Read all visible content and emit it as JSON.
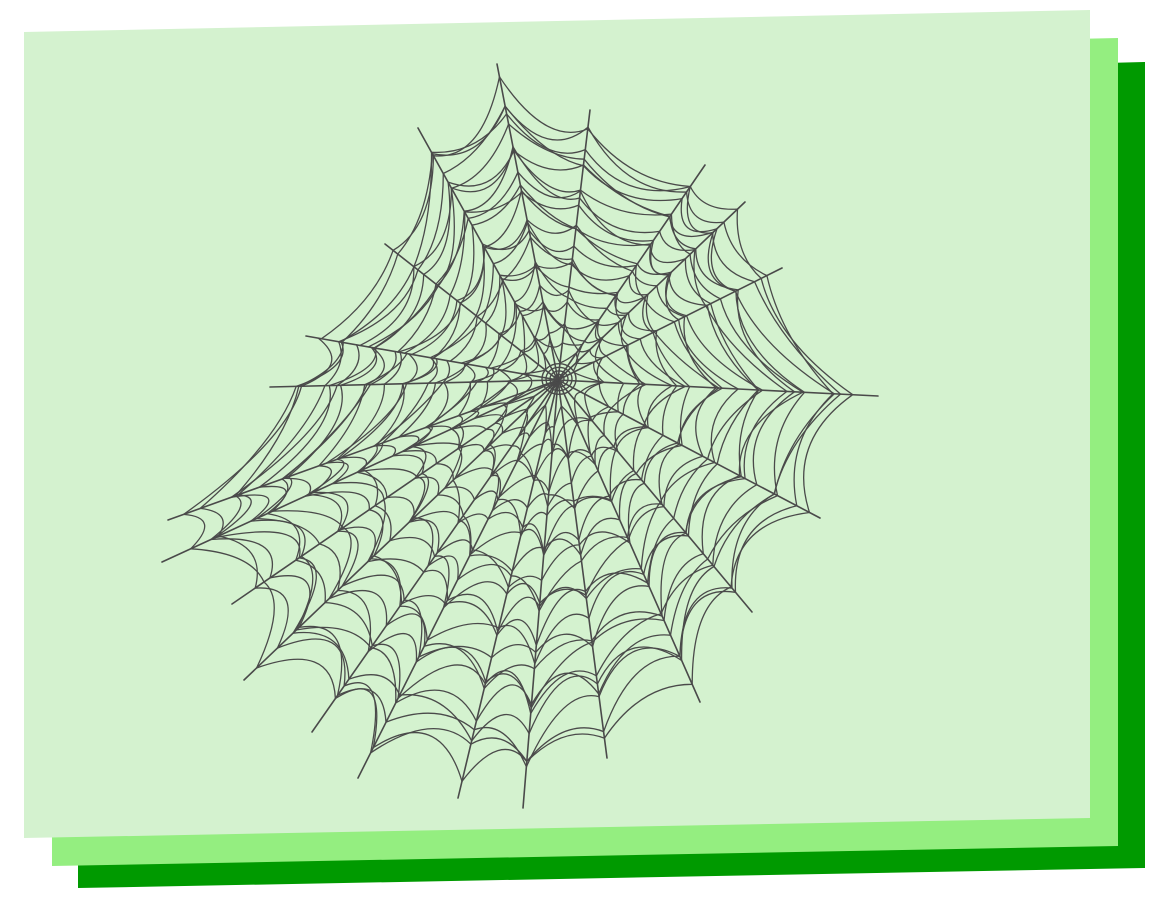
{
  "colors": {
    "background": "#ffffff",
    "card_front": "#d4f2cf",
    "card_middle": "#94ee80",
    "card_back": "#009a00",
    "web_stroke": "#4a4a4a"
  },
  "illustration": {
    "subject": "spider-web-icon"
  }
}
